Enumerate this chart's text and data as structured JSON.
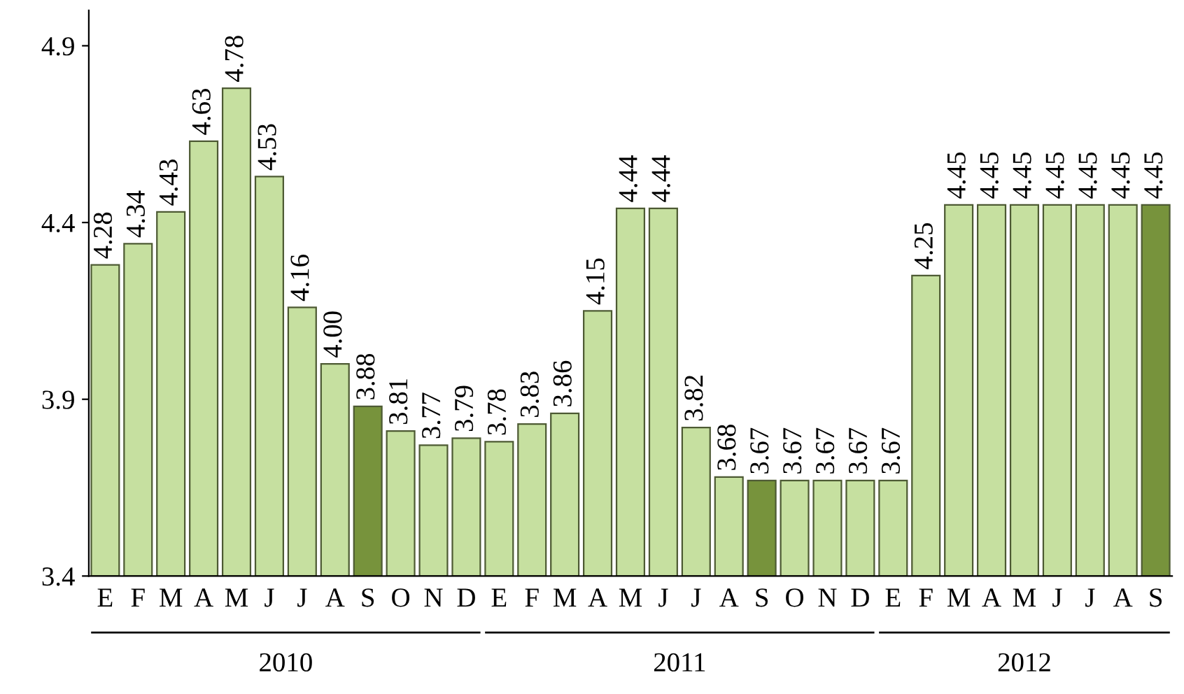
{
  "chart_data": {
    "type": "bar",
    "categories": [
      "E",
      "F",
      "M",
      "A",
      "M",
      "J",
      "J",
      "A",
      "S",
      "O",
      "N",
      "D",
      "E",
      "F",
      "M",
      "A",
      "M",
      "J",
      "J",
      "A",
      "S",
      "O",
      "N",
      "D",
      "E",
      "F",
      "M",
      "A",
      "M",
      "J",
      "J",
      "A",
      "S"
    ],
    "values": [
      4.28,
      4.34,
      4.43,
      4.63,
      4.78,
      4.53,
      4.16,
      4.0,
      3.88,
      3.81,
      3.77,
      3.79,
      3.78,
      3.83,
      3.86,
      4.15,
      4.44,
      4.44,
      3.82,
      3.68,
      3.67,
      3.67,
      3.67,
      3.67,
      3.67,
      4.25,
      4.45,
      4.45,
      4.45,
      4.45,
      4.45,
      4.45,
      4.45
    ],
    "value_labels": [
      "4.28",
      "4.34",
      "4.43",
      "4.63",
      "4.78",
      "4.53",
      "4.16",
      "4.00",
      "3.88",
      "3.81",
      "3.77",
      "3.79",
      "3.78",
      "3.83",
      "3.86",
      "4.15",
      "4.44",
      "4.44",
      "3.82",
      "3.68",
      "3.67",
      "3.67",
      "3.67",
      "3.67",
      "3.67",
      "4.25",
      "4.45",
      "4.45",
      "4.45",
      "4.45",
      "4.45",
      "4.45",
      "4.45"
    ],
    "colors": [
      "#c6e0a0",
      "#c6e0a0",
      "#c6e0a0",
      "#c6e0a0",
      "#c6e0a0",
      "#c6e0a0",
      "#c6e0a0",
      "#c6e0a0",
      "#77933c",
      "#c6e0a0",
      "#c6e0a0",
      "#c6e0a0",
      "#c6e0a0",
      "#c6e0a0",
      "#c6e0a0",
      "#c6e0a0",
      "#c6e0a0",
      "#c6e0a0",
      "#c6e0a0",
      "#c6e0a0",
      "#77933c",
      "#c6e0a0",
      "#c6e0a0",
      "#c6e0a0",
      "#c6e0a0",
      "#c6e0a0",
      "#c6e0a0",
      "#c6e0a0",
      "#c6e0a0",
      "#c6e0a0",
      "#c6e0a0",
      "#c6e0a0",
      "#77933c"
    ],
    "annotations": [
      "2010",
      "2011",
      "2012"
    ],
    "ylim": [
      3.4,
      5.0
    ],
    "yticks": [
      3.4,
      3.9,
      4.4,
      4.9
    ],
    "grid": false,
    "legend": false
  }
}
